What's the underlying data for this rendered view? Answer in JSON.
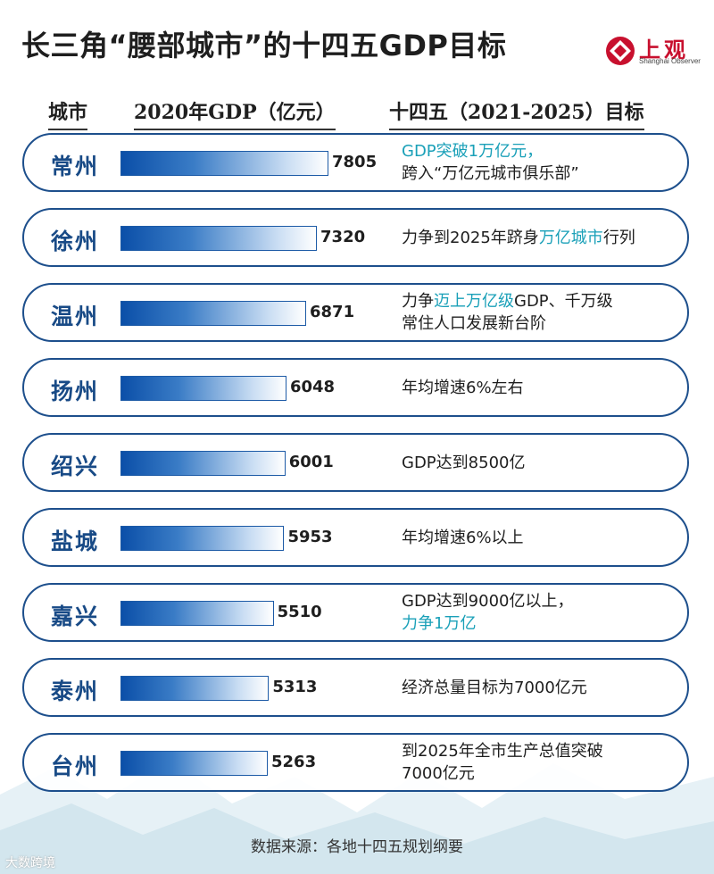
{
  "title": "长三角“腰部城市”的十四五GDP目标",
  "logo": {
    "name": "上观",
    "subtitle": "Shanghai Observer"
  },
  "headers": {
    "city": "城市",
    "gdp": "2020年GDP（亿元）",
    "goal": "十四五（2021-2025）目标"
  },
  "source": "数据来源：各地十四五规划纲要",
  "watermark": "大数跨境",
  "colors": {
    "city_text": "#184a86",
    "row_border": "#1d4f8c",
    "highlight": "#1aa0b8",
    "bar": "#0b4fa8"
  },
  "chart_data": {
    "type": "bar",
    "orientation": "horizontal",
    "title": "长三角“腰部城市”的十四五GDP目标",
    "categories": [
      "常州",
      "徐州",
      "温州",
      "扬州",
      "绍兴",
      "盐城",
      "嘉兴",
      "泰州",
      "台州"
    ],
    "values": [
      7805,
      7320,
      6871,
      6048,
      6001,
      5953,
      5510,
      5313,
      5263
    ],
    "value_labels": [
      "7805",
      "7320",
      "6871",
      "6048",
      "6001",
      "5953",
      "5510",
      "5313",
      "5263"
    ],
    "xlabel": "2020年GDP（亿元）",
    "ylabel": "城市",
    "goals": [
      [
        {
          "t": "GDP突破1万亿元，",
          "hl": true
        },
        {
          "t": "\n跨入“万亿元城市俱乐部”",
          "hl": false
        }
      ],
      [
        {
          "t": "力争到2025年跻身",
          "hl": false
        },
        {
          "t": "万亿城市",
          "hl": true
        },
        {
          "t": "行列",
          "hl": false
        }
      ],
      [
        {
          "t": "力争",
          "hl": false
        },
        {
          "t": "迈上万亿级",
          "hl": true
        },
        {
          "t": "GDP、千万级\n常住人口发展新台阶",
          "hl": false
        }
      ],
      [
        {
          "t": "年均增速6%左右",
          "hl": false
        }
      ],
      [
        {
          "t": "GDP达到8500亿",
          "hl": false
        }
      ],
      [
        {
          "t": "年均增速6%以上",
          "hl": false
        }
      ],
      [
        {
          "t": "GDP达到9000亿以上，\n",
          "hl": false
        },
        {
          "t": "力争1万亿",
          "hl": true
        }
      ],
      [
        {
          "t": "经济总量目标为7000亿元",
          "hl": false
        }
      ],
      [
        {
          "t": "到2025年全市生产总值突破\n7000亿元",
          "hl": false
        }
      ]
    ]
  }
}
